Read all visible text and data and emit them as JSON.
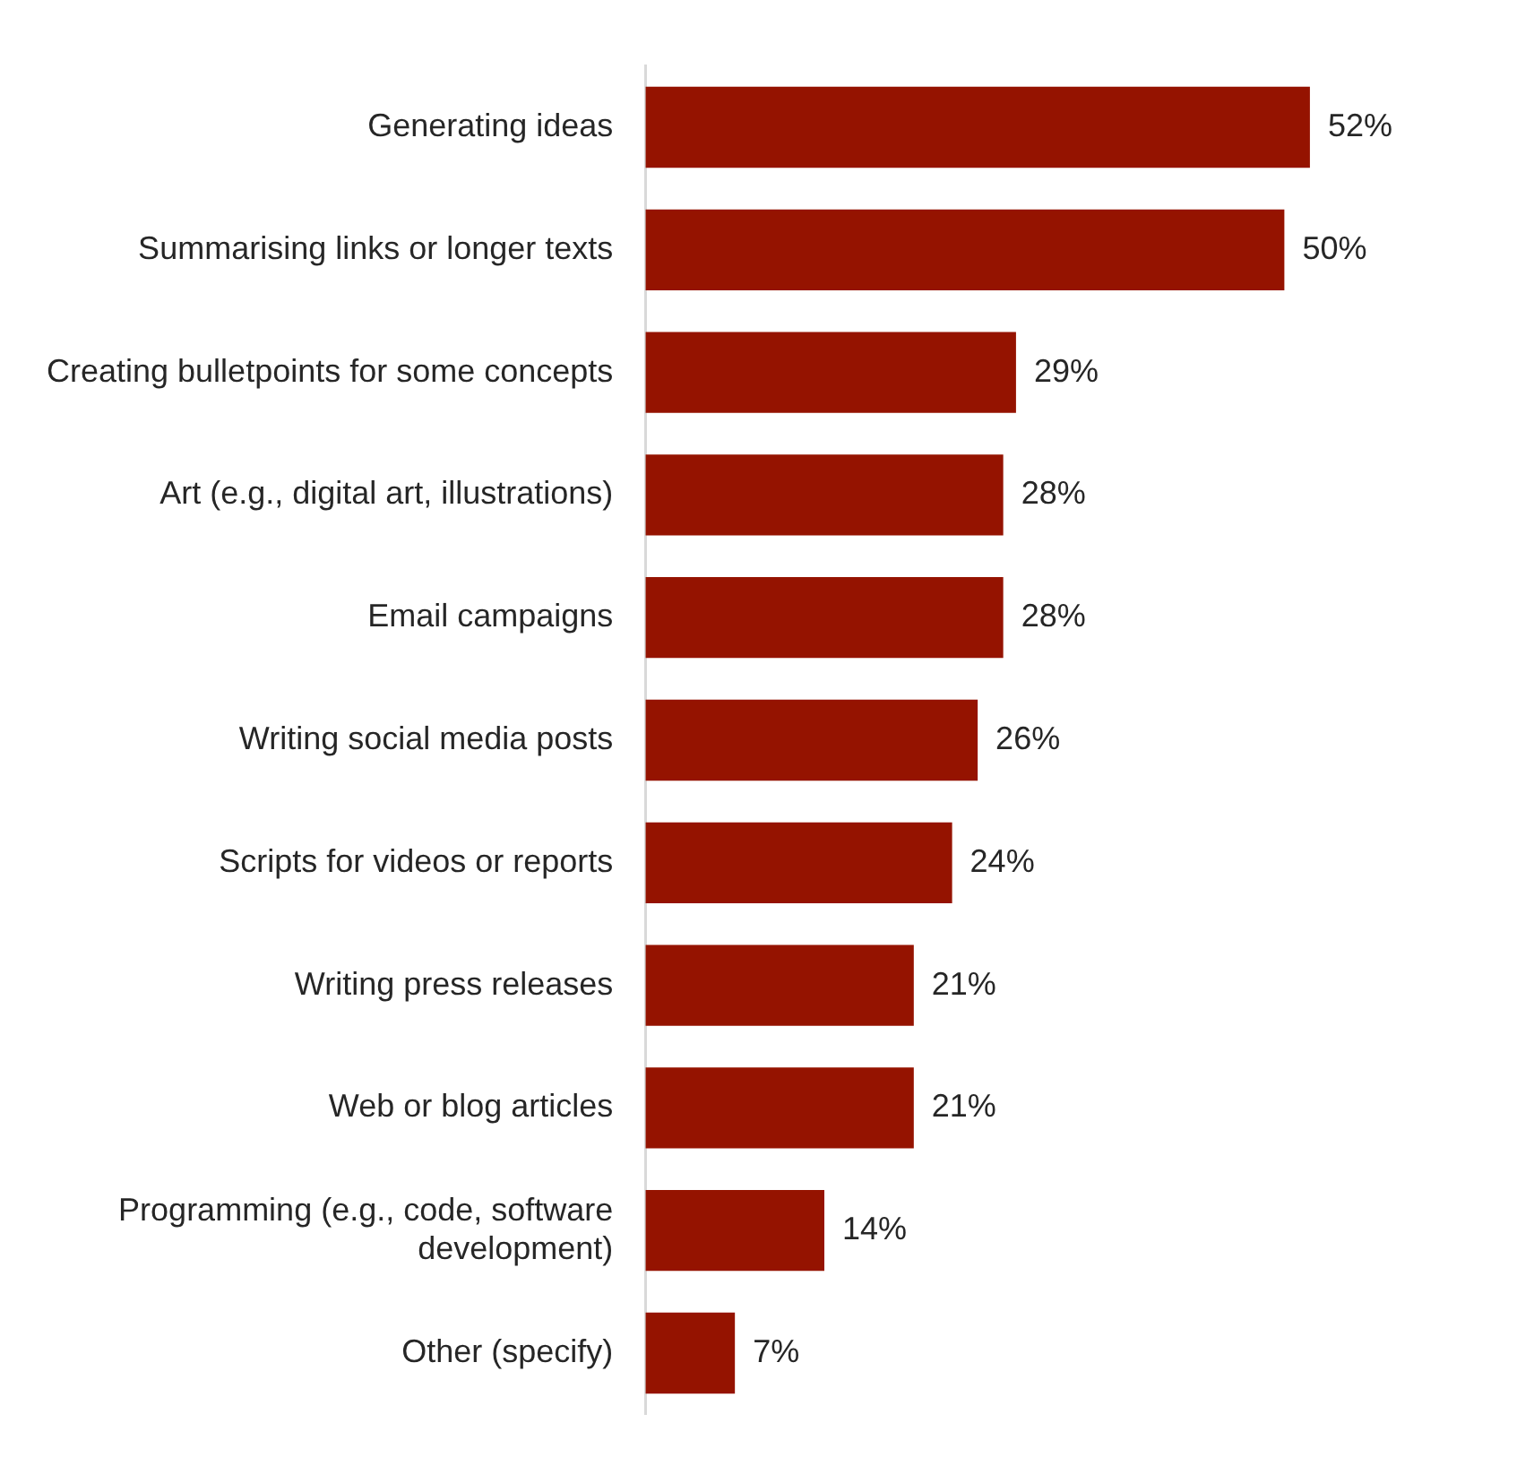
{
  "chart_data": {
    "type": "bar",
    "orientation": "horizontal",
    "categories": [
      "Generating ideas",
      "Summarising links or longer texts",
      "Creating bulletpoints for some concepts",
      "Art (e.g., digital art, illustrations)",
      "Email campaigns",
      "Writing social media posts",
      "Scripts for videos or reports",
      "Writing press releases",
      "Web or blog articles",
      "Programming (e.g., code, software development)",
      "Other (specify)"
    ],
    "values": [
      52,
      50,
      29,
      28,
      28,
      26,
      24,
      21,
      21,
      14,
      7
    ],
    "value_labels": [
      "52%",
      "50%",
      "29%",
      "28%",
      "28%",
      "26%",
      "24%",
      "21%",
      "21%",
      "14%",
      "7%"
    ],
    "color": "#951300"
  }
}
